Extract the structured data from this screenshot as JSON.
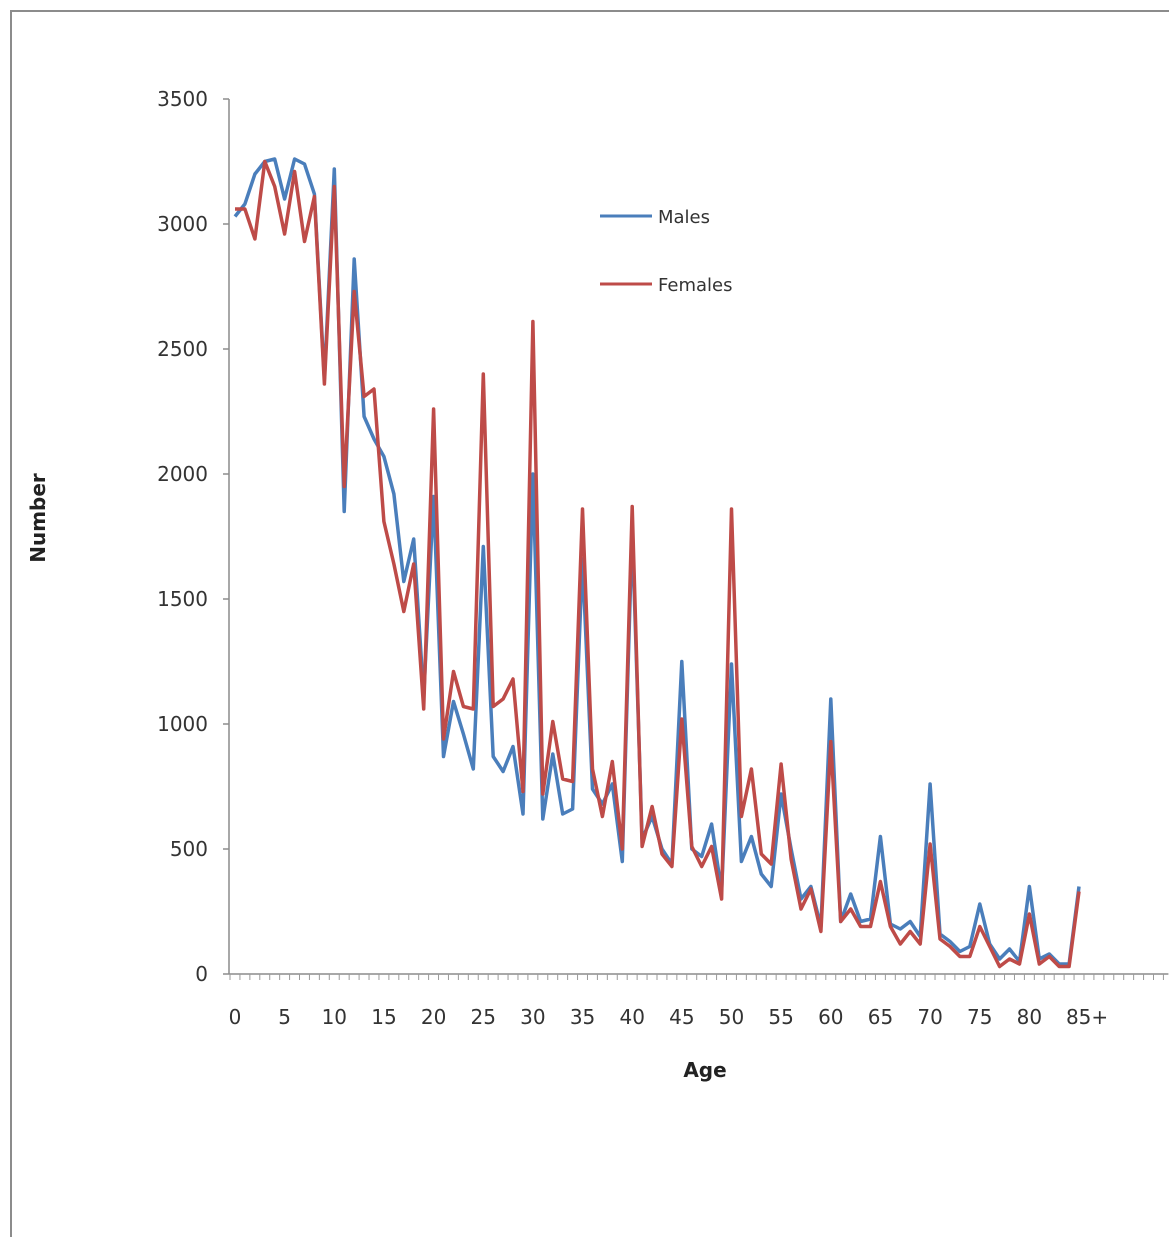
{
  "chart_data": {
    "type": "line",
    "xlabel": "Age",
    "ylabel": "Number",
    "ylim": [
      0,
      3500
    ],
    "y_ticks": [
      0,
      500,
      1000,
      1500,
      2000,
      2500,
      3000,
      3500
    ],
    "x_tick_labels": [
      "0",
      "5",
      "10",
      "15",
      "20",
      "25",
      "30",
      "35",
      "40",
      "45",
      "50",
      "55",
      "60",
      "65",
      "70",
      "75",
      "80",
      "85+"
    ],
    "x_tick_positions": [
      0,
      5,
      10,
      15,
      20,
      25,
      30,
      35,
      40,
      45,
      50,
      55,
      60,
      65,
      70,
      75,
      80,
      85
    ],
    "x_max": 94,
    "grid": false,
    "legend_position": "top-center",
    "x": [
      0,
      1,
      2,
      3,
      4,
      5,
      6,
      7,
      8,
      9,
      10,
      11,
      12,
      13,
      14,
      15,
      16,
      17,
      18,
      19,
      20,
      21,
      22,
      23,
      24,
      25,
      26,
      27,
      28,
      29,
      30,
      31,
      32,
      33,
      34,
      35,
      36,
      37,
      38,
      39,
      40,
      41,
      42,
      43,
      44,
      45,
      46,
      47,
      48,
      49,
      50,
      51,
      52,
      53,
      54,
      55,
      56,
      57,
      58,
      59,
      60,
      61,
      62,
      63,
      64,
      65,
      66,
      67,
      68,
      69,
      70,
      71,
      72,
      73,
      74,
      75,
      76,
      77,
      78,
      79,
      80,
      81,
      82,
      83,
      84,
      85
    ],
    "series": [
      {
        "name": "Males",
        "color": "#4a7ebb",
        "values": [
          3030,
          3080,
          3200,
          3250,
          3260,
          3100,
          3260,
          3240,
          3120,
          2380,
          3220,
          1850,
          2860,
          2230,
          2140,
          2070,
          1920,
          1570,
          1740,
          1110,
          1910,
          870,
          1090,
          960,
          820,
          1710,
          870,
          810,
          910,
          640,
          2000,
          620,
          880,
          640,
          660,
          1660,
          740,
          680,
          760,
          450,
          1780,
          540,
          630,
          500,
          440,
          1250,
          500,
          470,
          600,
          330,
          1240,
          450,
          550,
          400,
          350,
          720,
          500,
          300,
          350,
          190,
          1100,
          210,
          320,
          210,
          220,
          550,
          200,
          180,
          210,
          150,
          760,
          160,
          130,
          90,
          110,
          280,
          120,
          60,
          100,
          50,
          350,
          60,
          80,
          40,
          40,
          350
        ]
      },
      {
        "name": "Females",
        "color": "#be4b48",
        "values": [
          3060,
          3060,
          2940,
          3250,
          3150,
          2960,
          3210,
          2930,
          3110,
          2360,
          3150,
          1950,
          2730,
          2310,
          2340,
          1810,
          1640,
          1450,
          1640,
          1060,
          2260,
          940,
          1210,
          1070,
          1060,
          2400,
          1070,
          1100,
          1180,
          730,
          2610,
          720,
          1010,
          780,
          770,
          1860,
          820,
          630,
          850,
          500,
          1870,
          510,
          670,
          480,
          430,
          1020,
          510,
          430,
          510,
          300,
          1860,
          630,
          820,
          480,
          440,
          840,
          460,
          260,
          340,
          170,
          930,
          210,
          260,
          190,
          190,
          370,
          190,
          120,
          170,
          120,
          520,
          140,
          110,
          70,
          70,
          190,
          110,
          30,
          60,
          40,
          240,
          40,
          70,
          30,
          30,
          330
        ]
      }
    ]
  }
}
